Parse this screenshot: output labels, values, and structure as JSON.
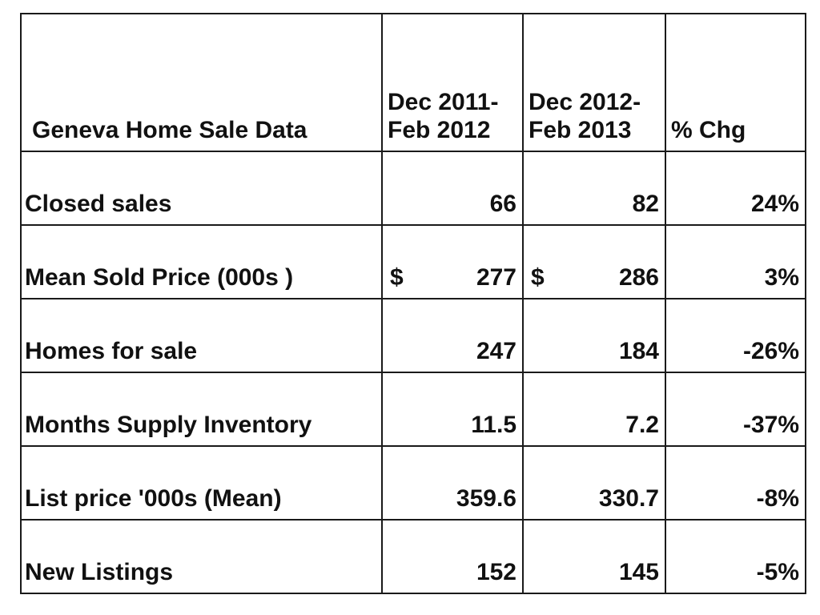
{
  "table": {
    "title": "Geneva Home Sale Data",
    "headers": {
      "period1": "Dec 2011-\nFeb 2012",
      "period2": "Dec 2012-\nFeb 2013",
      "chg": "% Chg"
    },
    "rows": [
      {
        "label": "Closed sales",
        "v1": "66",
        "v2": "82",
        "chg": "24%"
      },
      {
        "label": "Mean Sold Price (000s )",
        "cur1": "$",
        "v1": "277",
        "cur2": "$",
        "v2": "286",
        "chg": "3%"
      },
      {
        "label": "Homes for sale",
        "v1": "247",
        "v2": "184",
        "chg": "-26%"
      },
      {
        "label": "Months Supply Inventory",
        "v1": "11.5",
        "v2": "7.2",
        "chg": "-37%"
      },
      {
        "label": "List price '000s (Mean)",
        "v1": "359.6",
        "v2": "330.7",
        "chg": "-8%"
      },
      {
        "label": "New Listings",
        "v1": "152",
        "v2": "145",
        "chg": "-5%"
      }
    ],
    "colors": {
      "border": "#1a1a1a",
      "text": "#111111",
      "background": "#ffffff"
    }
  },
  "chart_data": {
    "type": "table",
    "title": "Geneva Home Sale Data",
    "columns": [
      "Geneva Home Sale Data",
      "Dec 2011-Feb 2012",
      "Dec 2012-Feb 2013",
      "% Chg"
    ],
    "rows": [
      [
        "Closed sales",
        "66",
        "82",
        "24%"
      ],
      [
        "Mean Sold Price (000s )",
        "$ 277",
        "$ 286",
        "3%"
      ],
      [
        "Homes for sale",
        "247",
        "184",
        "-26%"
      ],
      [
        "Months Supply Inventory",
        "11.5",
        "7.2",
        "-37%"
      ],
      [
        "List price '000s (Mean)",
        "359.6",
        "330.7",
        "-8%"
      ],
      [
        "New Listings",
        "152",
        "145",
        "-5%"
      ]
    ],
    "series": [
      {
        "name": "Dec 2011-Feb 2012",
        "values": [
          66,
          277,
          247,
          11.5,
          359.6,
          152
        ]
      },
      {
        "name": "Dec 2012-Feb 2013",
        "values": [
          82,
          286,
          184,
          7.2,
          330.7,
          145
        ]
      },
      {
        "name": "% Chg",
        "values": [
          24,
          3,
          -26,
          -37,
          -8,
          -5
        ]
      }
    ],
    "categories": [
      "Closed sales",
      "Mean Sold Price (000s )",
      "Homes for sale",
      "Months Supply Inventory",
      "List price '000s (Mean)",
      "New Listings"
    ]
  }
}
